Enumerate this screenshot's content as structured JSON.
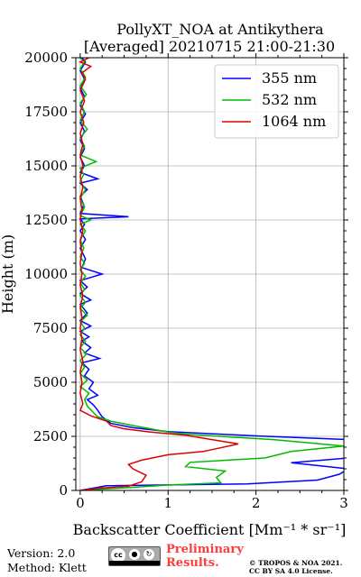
{
  "chart_data": {
    "type": "line",
    "title": "PollyXT_NOA at Antikythera",
    "subtitle": "[Averaged] 20210715 21:00-21:30",
    "xlabel": "Backscatter Coefficient [Mm⁻¹ * sr⁻¹]",
    "ylabel": "Height (m)",
    "xlim": [
      -0.05,
      3
    ],
    "ylim": [
      0,
      20000
    ],
    "xticks": [
      0,
      1,
      2,
      3
    ],
    "xtick_labels": [
      "0",
      "1",
      "2",
      "3"
    ],
    "yticks": [
      0,
      2500,
      5000,
      7500,
      10000,
      12500,
      15000,
      17500,
      20000
    ],
    "ytick_labels": [
      "0",
      "2500",
      "5000",
      "7500",
      "10000",
      "12500",
      "15000",
      "17500",
      "20000"
    ],
    "grid": true,
    "legend_position": "top-right",
    "series": [
      {
        "name": "355 nm",
        "color": "#0000ff",
        "points": [
          [
            0.0,
            0
          ],
          [
            0.3,
            220
          ],
          [
            1.9,
            300
          ],
          [
            2.7,
            480
          ],
          [
            2.95,
            750
          ],
          [
            3.05,
            1000
          ],
          [
            2.4,
            1280
          ],
          [
            3.05,
            1500
          ],
          [
            3.05,
            2200
          ],
          [
            3.05,
            2350
          ],
          [
            2.0,
            2520
          ],
          [
            1.0,
            2720
          ],
          [
            0.6,
            2900
          ],
          [
            0.35,
            3100
          ],
          [
            0.25,
            3400
          ],
          [
            0.2,
            3700
          ],
          [
            0.15,
            3950
          ],
          [
            0.08,
            4200
          ],
          [
            0.2,
            4400
          ],
          [
            0.1,
            4700
          ],
          [
            0.15,
            5000
          ],
          [
            0.05,
            5300
          ],
          [
            0.1,
            5600
          ],
          [
            0.02,
            5900
          ],
          [
            0.22,
            6100
          ],
          [
            0.05,
            6350
          ],
          [
            0.12,
            6600
          ],
          [
            0.02,
            6900
          ],
          [
            0.1,
            7100
          ],
          [
            0.0,
            7350
          ],
          [
            0.12,
            7600
          ],
          [
            0.0,
            7850
          ],
          [
            0.08,
            8200
          ],
          [
            0.0,
            8600
          ],
          [
            0.12,
            8800
          ],
          [
            0.0,
            9100
          ],
          [
            0.08,
            9400
          ],
          [
            0.0,
            9700
          ],
          [
            0.25,
            10000
          ],
          [
            0.02,
            10300
          ],
          [
            0.06,
            10700
          ],
          [
            0.0,
            11200
          ],
          [
            0.06,
            11600
          ],
          [
            0.0,
            12000
          ],
          [
            0.05,
            12300
          ],
          [
            0.0,
            12550
          ],
          [
            0.55,
            12650
          ],
          [
            0.0,
            12800
          ],
          [
            0.04,
            13200
          ],
          [
            0.0,
            13600
          ],
          [
            0.08,
            13900
          ],
          [
            0.0,
            14200
          ],
          [
            0.2,
            14400
          ],
          [
            0.0,
            14700
          ],
          [
            0.05,
            15000
          ],
          [
            0.0,
            15400
          ],
          [
            0.05,
            15800
          ],
          [
            0.0,
            16200
          ],
          [
            0.05,
            16600
          ],
          [
            0.0,
            17000
          ],
          [
            0.06,
            17400
          ],
          [
            0.0,
            17800
          ],
          [
            0.05,
            18200
          ],
          [
            0.0,
            18600
          ],
          [
            0.05,
            19000
          ],
          [
            0.0,
            19400
          ],
          [
            0.06,
            19800
          ],
          [
            0.02,
            20000
          ]
        ]
      },
      {
        "name": "532 nm",
        "color": "#00bb00",
        "points": [
          [
            0.0,
            0
          ],
          [
            0.5,
            120
          ],
          [
            1.0,
            250
          ],
          [
            1.6,
            350
          ],
          [
            1.55,
            600
          ],
          [
            1.65,
            900
          ],
          [
            1.2,
            1100
          ],
          [
            1.25,
            1300
          ],
          [
            2.1,
            1500
          ],
          [
            2.4,
            1800
          ],
          [
            3.0,
            2050
          ],
          [
            2.2,
            2350
          ],
          [
            1.2,
            2600
          ],
          [
            1.0,
            2700
          ],
          [
            0.6,
            3000
          ],
          [
            0.35,
            3200
          ],
          [
            0.2,
            3400
          ],
          [
            0.15,
            3600
          ],
          [
            0.08,
            3900
          ],
          [
            0.05,
            4200
          ],
          [
            0.1,
            4500
          ],
          [
            0.0,
            4800
          ],
          [
            0.08,
            5100
          ],
          [
            0.0,
            5400
          ],
          [
            0.05,
            5700
          ],
          [
            0.0,
            6000
          ],
          [
            0.07,
            6300
          ],
          [
            0.0,
            6600
          ],
          [
            0.06,
            6900
          ],
          [
            0.0,
            7200
          ],
          [
            0.05,
            7500
          ],
          [
            0.0,
            7800
          ],
          [
            0.08,
            8100
          ],
          [
            0.0,
            8400
          ],
          [
            0.06,
            8700
          ],
          [
            0.0,
            9000
          ],
          [
            0.05,
            9300
          ],
          [
            0.0,
            9600
          ],
          [
            0.06,
            9900
          ],
          [
            0.0,
            10200
          ],
          [
            0.05,
            10500
          ],
          [
            0.0,
            10800
          ],
          [
            0.04,
            11200
          ],
          [
            0.0,
            11600
          ],
          [
            0.06,
            12000
          ],
          [
            0.0,
            12300
          ],
          [
            0.12,
            12500
          ],
          [
            0.0,
            12700
          ],
          [
            0.05,
            13100
          ],
          [
            0.0,
            13500
          ],
          [
            0.06,
            13900
          ],
          [
            0.0,
            14300
          ],
          [
            0.04,
            14600
          ],
          [
            0.0,
            14900
          ],
          [
            0.18,
            15200
          ],
          [
            0.0,
            15500
          ],
          [
            0.05,
            15900
          ],
          [
            0.0,
            16300
          ],
          [
            0.08,
            16700
          ],
          [
            0.0,
            17100
          ],
          [
            0.05,
            17500
          ],
          [
            0.0,
            17900
          ],
          [
            0.07,
            18300
          ],
          [
            0.0,
            18700
          ],
          [
            0.06,
            19100
          ],
          [
            0.0,
            19500
          ],
          [
            0.05,
            19800
          ],
          [
            0.0,
            20000
          ]
        ]
      },
      {
        "name": "1064 nm",
        "color": "#dd0000",
        "points": [
          [
            0.0,
            0
          ],
          [
            0.2,
            100
          ],
          [
            0.55,
            200
          ],
          [
            0.7,
            400
          ],
          [
            0.75,
            700
          ],
          [
            0.6,
            1000
          ],
          [
            0.55,
            1200
          ],
          [
            0.7,
            1400
          ],
          [
            1.0,
            1650
          ],
          [
            1.4,
            1800
          ],
          [
            1.8,
            2150
          ],
          [
            1.5,
            2350
          ],
          [
            1.2,
            2550
          ],
          [
            0.8,
            2700
          ],
          [
            0.5,
            2850
          ],
          [
            0.35,
            3000
          ],
          [
            0.3,
            3200
          ],
          [
            0.12,
            3450
          ],
          [
            0.0,
            3700
          ],
          [
            0.03,
            4000
          ],
          [
            0.0,
            4500
          ],
          [
            0.02,
            5000
          ],
          [
            0.0,
            5500
          ],
          [
            0.03,
            6000
          ],
          [
            0.0,
            6500
          ],
          [
            0.02,
            7000
          ],
          [
            0.0,
            7500
          ],
          [
            0.02,
            8000
          ],
          [
            0.0,
            8500
          ],
          [
            0.03,
            9000
          ],
          [
            0.0,
            9500
          ],
          [
            0.02,
            10000
          ],
          [
            0.0,
            10500
          ],
          [
            0.02,
            11000
          ],
          [
            0.0,
            11500
          ],
          [
            0.03,
            12000
          ],
          [
            0.0,
            12500
          ],
          [
            0.02,
            13000
          ],
          [
            0.0,
            13500
          ],
          [
            0.03,
            14000
          ],
          [
            0.0,
            14500
          ],
          [
            0.03,
            15000
          ],
          [
            0.0,
            15500
          ],
          [
            0.03,
            16000
          ],
          [
            0.0,
            16500
          ],
          [
            0.04,
            17000
          ],
          [
            0.0,
            17500
          ],
          [
            0.05,
            18000
          ],
          [
            0.0,
            18500
          ],
          [
            0.06,
            19000
          ],
          [
            0.02,
            19300
          ],
          [
            0.12,
            19600
          ],
          [
            0.0,
            19800
          ],
          [
            0.1,
            20000
          ]
        ]
      }
    ]
  },
  "footer": {
    "version_line": "Version: 2.0",
    "method_line": "Method: Klett",
    "preliminary_line1": "Preliminary",
    "preliminary_line2": "Results.",
    "copyright_line1": "© TROPOS & NOA 2021.",
    "copyright_line2": "CC BY SA 4.0 License.",
    "cc_logo_text": "cc BY SA"
  }
}
